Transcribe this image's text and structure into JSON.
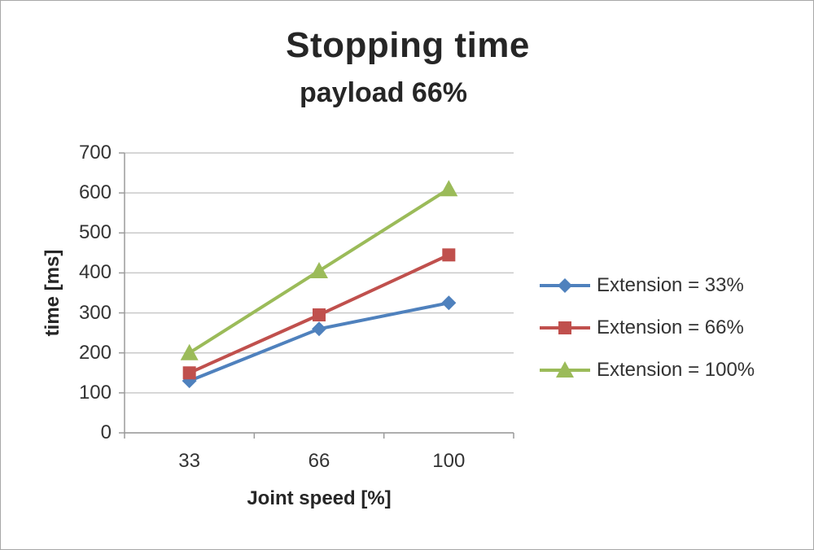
{
  "chart_data": {
    "type": "line",
    "title": "Stopping time",
    "subtitle": "payload 66%",
    "xlabel": "Joint speed [%]",
    "ylabel": "time [ms]",
    "categories": [
      "33",
      "66",
      "100"
    ],
    "y_ticks": [
      0,
      100,
      200,
      300,
      400,
      500,
      600,
      700
    ],
    "ylim": [
      0,
      700
    ],
    "grid": "horizontal",
    "legend_position": "right",
    "series": [
      {
        "name": "Extension = 33%",
        "color": "#4f81bd",
        "marker": "diamond",
        "values": [
          130,
          260,
          325
        ]
      },
      {
        "name": "Extension = 66%",
        "color": "#c0504d",
        "marker": "square",
        "values": [
          150,
          295,
          445
        ]
      },
      {
        "name": "Extension = 100%",
        "color": "#9bbb59",
        "marker": "triangle",
        "values": [
          200,
          405,
          610
        ]
      }
    ],
    "colors": {
      "gridline": "#c9c9c9",
      "axis": "#9b9b9b",
      "text": "#262626"
    }
  }
}
